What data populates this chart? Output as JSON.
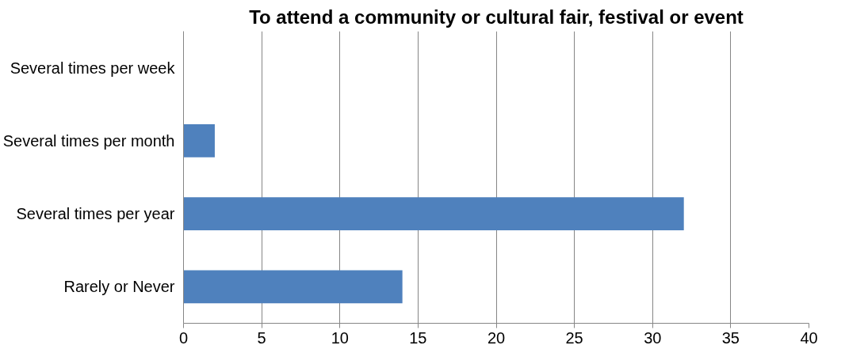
{
  "chart_data": {
    "type": "bar",
    "orientation": "horizontal",
    "title": "To attend a community or cultural fair, festival or event",
    "categories": [
      "Several times per week",
      "Several times per month",
      "Several times per year",
      "Rarely or Never"
    ],
    "values": [
      0,
      2,
      32,
      14
    ],
    "color": "#4f81bd",
    "xlim": [
      0,
      40
    ],
    "xticks": [
      0,
      5,
      10,
      15,
      20,
      25,
      30,
      35,
      40
    ],
    "grid": "x"
  }
}
